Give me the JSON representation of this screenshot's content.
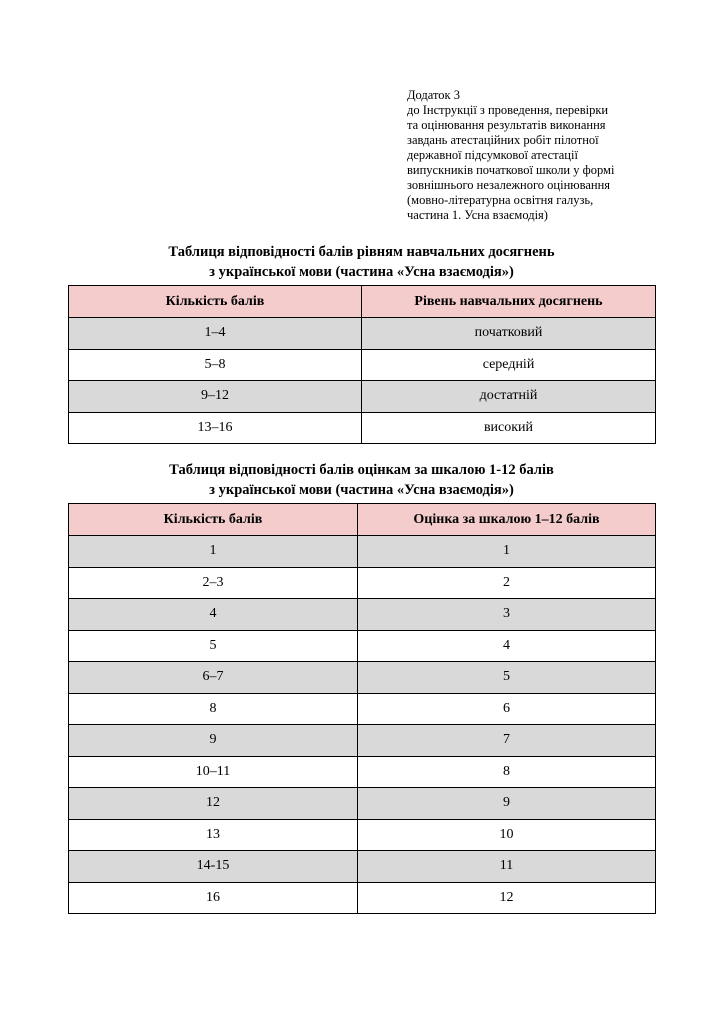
{
  "annex": {
    "lines": [
      "Додаток 3",
      "до Інструкції з проведення, перевірки",
      "та оцінювання результатів виконання",
      "завдань атестаційних робіт пілотної",
      "державної підсумкової атестації",
      "випускників початкової школи у формі",
      "зовнішнього незалежного оцінювання",
      "(мовно-літературна освітня галузь,",
      "частина 1. Усна взаємодія)"
    ]
  },
  "table1": {
    "title_line1": "Таблиця відповідності балів рівням навчальних досягнень",
    "title_line2": "з української мови (частина «Усна взаємодія»)",
    "headers": [
      "Кількість балів",
      "Рівень навчальних досягнень"
    ],
    "rows": [
      [
        "1–4",
        "початковий"
      ],
      [
        "5–8",
        "середній"
      ],
      [
        "9–12",
        "достатній"
      ],
      [
        "13–16",
        "високий"
      ]
    ]
  },
  "table2": {
    "title_line1": "Таблиця відповідності балів оцінкам за шкалою 1-12 балів",
    "title_line2": "з української мови (частина «Усна взаємодія»)",
    "headers": [
      "Кількість балів",
      "Оцінка за шкалою 1–12 балів"
    ],
    "rows": [
      [
        "1",
        "1"
      ],
      [
        "2–3",
        "2"
      ],
      [
        "4",
        "3"
      ],
      [
        "5",
        "4"
      ],
      [
        "6–7",
        "5"
      ],
      [
        "8",
        "6"
      ],
      [
        "9",
        "7"
      ],
      [
        "10–11",
        "8"
      ],
      [
        "12",
        "9"
      ],
      [
        "13",
        "10"
      ],
      [
        "14-15",
        "11"
      ],
      [
        "16",
        "12"
      ]
    ]
  },
  "colors": {
    "header_bg": "#f4cccc",
    "stripe_bg": "#d9d9d9"
  }
}
